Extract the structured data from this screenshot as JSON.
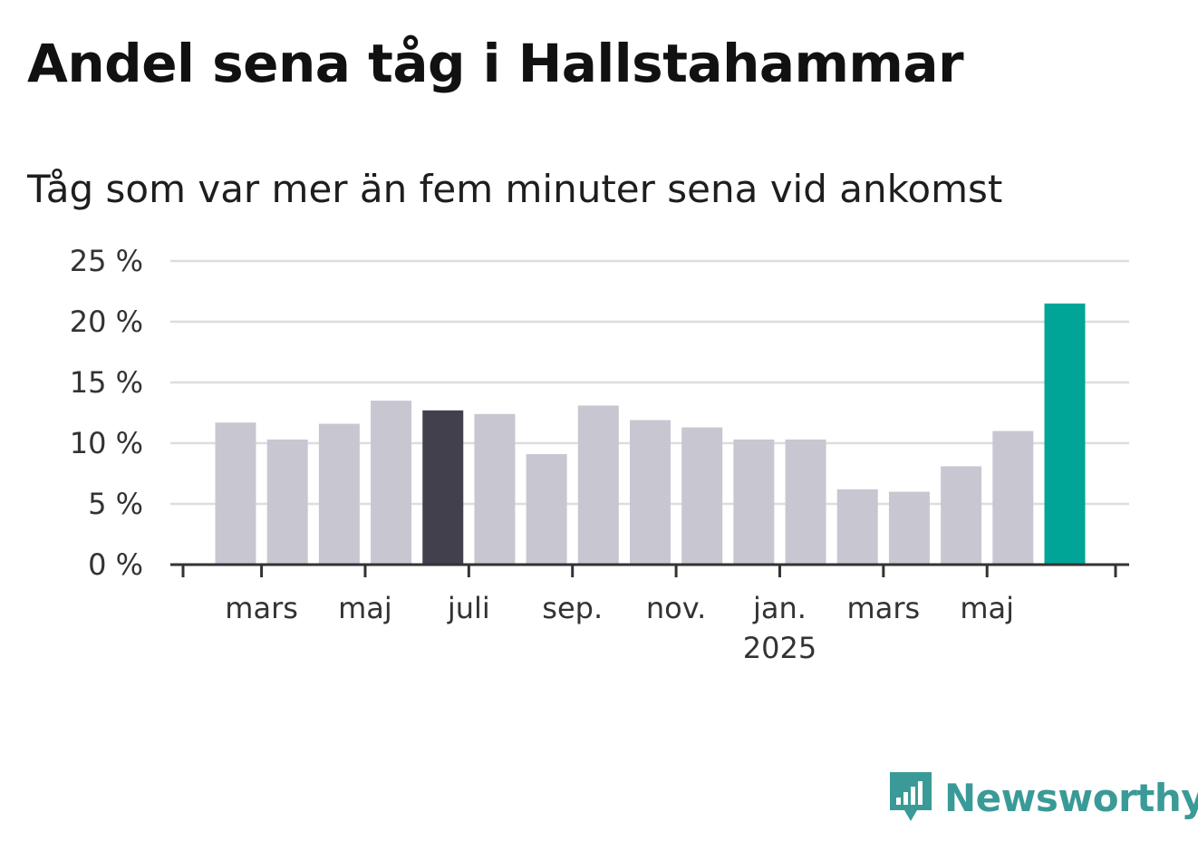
{
  "header": {
    "title": "Andel sena tåg i Hallstahammar",
    "subtitle": "Tåg som var mer än fem minuter sena vid ankomst"
  },
  "brand": {
    "name": "Newsworthy",
    "icon": "newsworthy-logo-icon",
    "color": "#3a9a97"
  },
  "colors": {
    "bar_default": "#c8c7d1",
    "bar_highlight": "#42404d",
    "bar_latest": "#00a598",
    "gridline": "#dddddd",
    "axis": "#333333"
  },
  "chart_data": {
    "type": "bar",
    "title": "Andel sena tåg i Hallstahammar",
    "subtitle": "Tåg som var mer än fem minuter sena vid ankomst",
    "xlabel": "",
    "ylabel": "",
    "categories": [
      "2024-02",
      "2024-03",
      "2024-04",
      "2024-05",
      "2024-06",
      "2024-07",
      "2024-08",
      "2024-09",
      "2024-10",
      "2024-11",
      "2024-12",
      "2025-01",
      "2025-02",
      "2025-03",
      "2025-04",
      "2025-05",
      "2025-06"
    ],
    "values": [
      11.7,
      10.3,
      11.6,
      13.5,
      12.7,
      12.4,
      9.1,
      13.1,
      11.9,
      11.3,
      10.3,
      10.3,
      6.2,
      6.0,
      8.1,
      11.0,
      21.5
    ],
    "highlight_index": 4,
    "latest_index": 16,
    "ylim": [
      0,
      25
    ],
    "yticks": [
      0,
      5,
      10,
      15,
      20,
      25
    ],
    "ytick_labels": [
      "0 %",
      "5 %",
      "10 %",
      "15 %",
      "20 %",
      "25 %"
    ],
    "xticks": [
      {
        "category": "2024-03",
        "label": "mars",
        "sublabel": ""
      },
      {
        "category": "2024-05",
        "label": "maj",
        "sublabel": ""
      },
      {
        "category": "2024-07",
        "label": "juli",
        "sublabel": ""
      },
      {
        "category": "2024-09",
        "label": "sep.",
        "sublabel": ""
      },
      {
        "category": "2024-11",
        "label": "nov.",
        "sublabel": ""
      },
      {
        "category": "2025-01",
        "label": "jan.",
        "sublabel": "2025"
      },
      {
        "category": "2025-03",
        "label": "mars",
        "sublabel": ""
      },
      {
        "category": "2025-05",
        "label": "maj",
        "sublabel": ""
      }
    ],
    "grid": true,
    "legend": "none"
  }
}
